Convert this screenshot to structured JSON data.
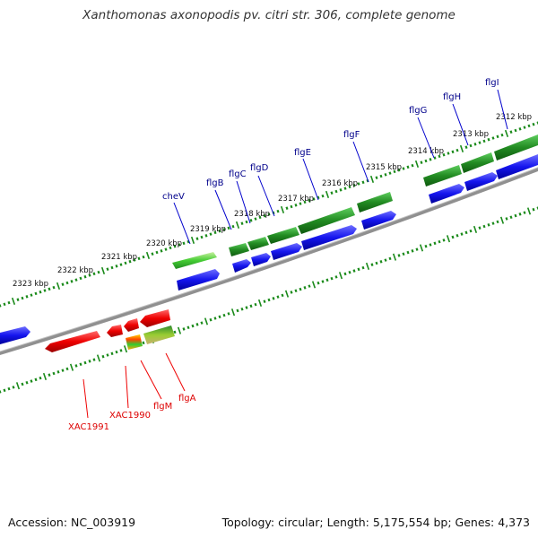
{
  "title": "Xanthomonas axonopodis pv. citri str. 306, complete genome",
  "accession_text": "Accession: NC_003919",
  "topology_text": "Topology: circular; Length: 5,175,554 bp; Genes: 4,373",
  "kbp_ticks": [
    "2312 kbp",
    "2313 kbp",
    "2314 kbp",
    "2315 kbp",
    "2316 kbp",
    "2317 kbp",
    "2318 kbp",
    "2319 kbp",
    "2320 kbp",
    "2321 kbp",
    "2322 kbp",
    "2323 kbp"
  ],
  "forward_genes": [
    "flgI",
    "flgH",
    "flgG",
    "flgF",
    "flgE",
    "flgD",
    "flgC",
    "flgB",
    "cheV"
  ],
  "reverse_genes": [
    "XAC1991",
    "XAC1990",
    "flgM",
    "flgA"
  ],
  "colors": {
    "forward_strand": "#2222ff",
    "reverse_strand": "#ff0000",
    "cds_track": "#228b22",
    "backbone": "#808080",
    "forward_label": "#00008b",
    "reverse_label": "#dd0000"
  }
}
